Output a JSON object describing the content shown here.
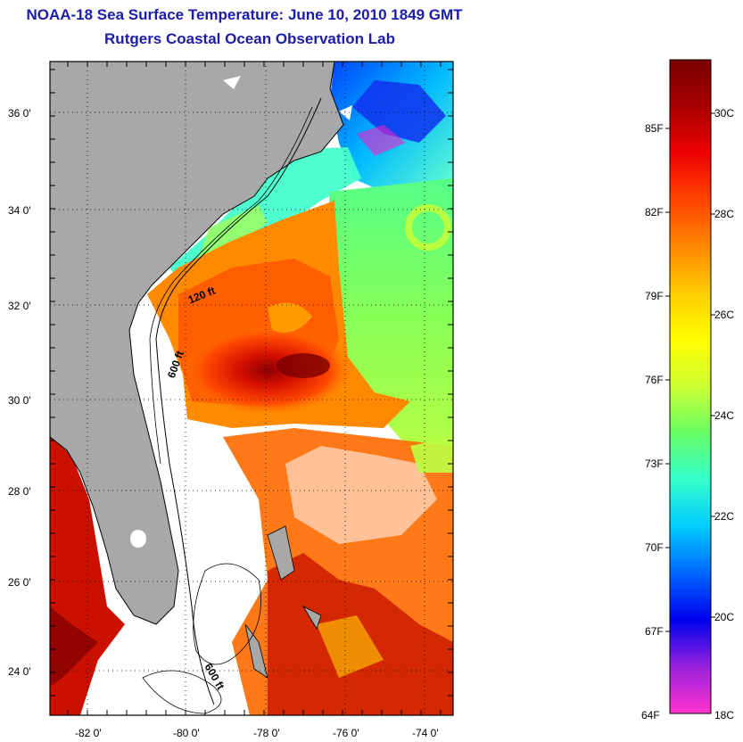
{
  "header": {
    "title": "NOAA-18 Sea Surface Temperature:  June 10, 2010 1849 GMT",
    "subtitle": "Rutgers Coastal Ocean Observation Lab"
  },
  "map": {
    "lon_range": [
      -83,
      -73
    ],
    "lat_range": [
      23,
      37.2
    ],
    "lon_ticks": [
      "-82 0'",
      "-80 0'",
      "-78 0'",
      "-76 0'",
      "-74 0'"
    ],
    "lat_ticks": [
      "36 0'",
      "34 0'",
      "32 0'",
      "30 0'",
      "28 0'",
      "26 0'",
      "24 0'"
    ],
    "land_color": "#a8a8a8",
    "cloud_mask_color": "#ffffff",
    "isobath_labels": [
      "120 ft",
      "600 ft",
      "600 ft"
    ]
  },
  "colorbar": {
    "fahrenheit_labels": [
      "85F",
      "82F",
      "79F",
      "76F",
      "73F",
      "70F",
      "67F",
      "64F"
    ],
    "celsius_labels": [
      "30C",
      "28C",
      "26C",
      "24C",
      "22C",
      "20C",
      "18C"
    ],
    "gradient_colors": [
      "#ff33cc",
      "#9922dd",
      "#0000ee",
      "#0066ff",
      "#00ccff",
      "#33ffcc",
      "#66ff66",
      "#ccff33",
      "#ffff00",
      "#ffcc00",
      "#ff8800",
      "#ff4400",
      "#ee0000",
      "#aa0000",
      "#7a0000"
    ]
  }
}
